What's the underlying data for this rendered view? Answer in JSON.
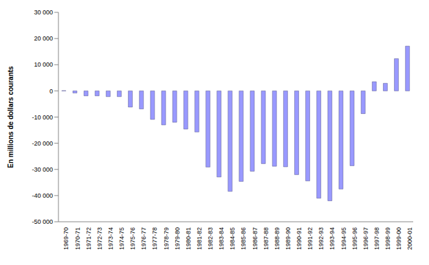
{
  "chart_data": {
    "type": "bar",
    "y_label": "En millions de dollars courants",
    "categories": [
      "1969-70",
      "1970-71",
      "1971-72",
      "1972-73",
      "1973-74",
      "1974-75",
      "1975-76",
      "1976-77",
      "1977-78",
      "1978-79",
      "1979-80",
      "1980-81",
      "1981-82",
      "1982-83",
      "1983-84",
      "1984-85",
      "1985-86",
      "1986-87",
      "1987-88",
      "1988-89",
      "1989-90",
      "1990-91",
      "1991-92",
      "1992-93",
      "1993-94",
      "1994-95",
      "1995-96",
      "1996-97",
      "1997-98",
      "1998-99",
      "1999-00",
      "2000-01"
    ],
    "values": [
      100,
      -800,
      -1900,
      -1900,
      -2200,
      -2200,
      -6200,
      -6900,
      -10900,
      -13000,
      -12000,
      -14600,
      -15700,
      -29100,
      -32900,
      -38400,
      -34600,
      -30700,
      -27800,
      -28800,
      -29000,
      -32000,
      -34400,
      -41000,
      -42000,
      -37500,
      -28600,
      -8700,
      3500,
      2900,
      12300,
      17100
    ],
    "color": "#9999ff",
    "ylim": [
      -50000,
      30000
    ],
    "yticks": [
      {
        "value": -50000,
        "label": "-50 000"
      },
      {
        "value": -40000,
        "label": "-40 000"
      },
      {
        "value": -30000,
        "label": "-30 000"
      },
      {
        "value": -20000,
        "label": "-20 000"
      },
      {
        "value": -10000,
        "label": "-10 000"
      },
      0,
      {
        "value": 10000,
        "label": "10 000"
      },
      {
        "value": 20000,
        "label": "20 000"
      },
      {
        "value": 30000,
        "label": "30 000"
      }
    ],
    "grid": false
  }
}
